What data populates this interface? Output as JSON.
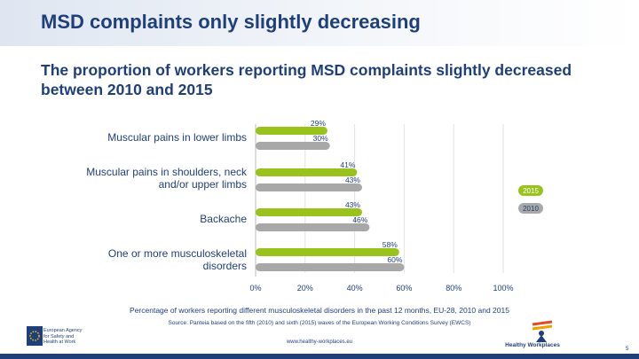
{
  "header": {
    "title": "MSD complaints only slightly decreasing",
    "subtitle": "The proportion of workers reporting MSD complaints slightly decreased between 2010 and 2015"
  },
  "chart_data": {
    "type": "bar",
    "orientation": "horizontal",
    "categories": [
      "Muscular pains in lower limbs",
      "Muscular pains in shoulders, neck and/or upper limbs",
      "Backache",
      "One or more musculoskeletal disorders"
    ],
    "series": [
      {
        "name": "2015",
        "values": [
          29,
          41,
          43,
          58
        ],
        "labels": [
          "29%",
          "41%",
          "43%",
          "58%"
        ],
        "color": "#99c31c"
      },
      {
        "name": "2010",
        "values": [
          30,
          43,
          46,
          60
        ],
        "labels": [
          "30%",
          "43%",
          "46%",
          "60%"
        ],
        "color": "#a8a8a8"
      }
    ],
    "x_ticks": [
      "0%",
      "20%",
      "40%",
      "60%",
      "80%",
      "100%"
    ],
    "xlim": [
      0,
      100
    ],
    "grid": true,
    "legend": "right",
    "caption": "Percentage of workers reporting different musculoskeletal disorders in the past 12 months, EU-28, 2010 and 2015",
    "source": "Source: Panteia based on the fifth (2010) and sixth (2015) waves of the European Working Conditions Survey (EWCS)"
  },
  "footer": {
    "url": "www.healthy-workplaces.eu",
    "agency_name": "European Agency for Safety and Health at Work",
    "campaign": "Healthy Workplaces",
    "page_number": "5"
  },
  "colors": {
    "title": "#1f3f7a",
    "bar_2015": "#99c31c",
    "bar_2010": "#a8a8a8",
    "footer_bar": "#1f3f7a"
  }
}
